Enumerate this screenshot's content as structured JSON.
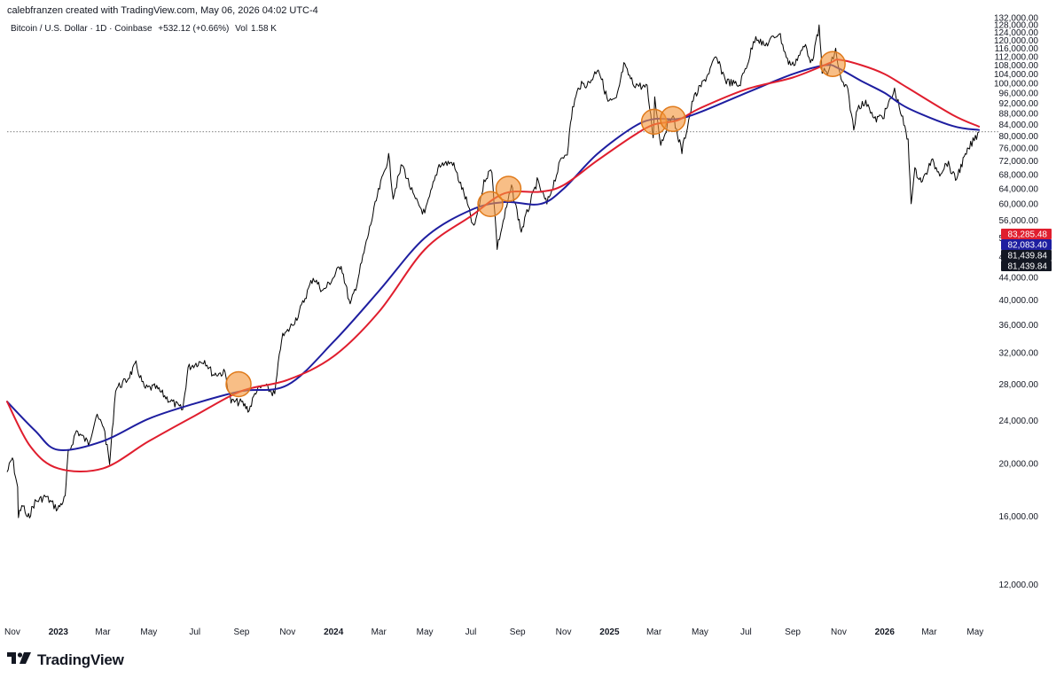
{
  "header": {
    "credit": "calebfranzen created with TradingView.com, May 06, 2026 04:02 UTC-4",
    "symbol": "Bitcoin / U.S. Dollar · 1D · Coinbase",
    "change": "+532.12 (+0.66%)",
    "volume_label": "Vol",
    "volume_value": "1.58 K"
  },
  "brand": {
    "name": "TradingView",
    "logo_icon": "tradingview-logo-icon"
  },
  "chart_data": {
    "type": "line",
    "title": "",
    "xlabel": "",
    "ylabel": "",
    "y_scale": "log",
    "ylim": [
      10500,
      133000
    ],
    "xlim": [
      "2022-10-25",
      "2026-05-20"
    ],
    "grid": false,
    "y_ticks": [
      132000,
      128000,
      124000,
      120000,
      116000,
      112000,
      108000,
      104000,
      100000,
      96000,
      92000,
      88000,
      84000,
      80000,
      76000,
      72000,
      68000,
      64000,
      60000,
      56000,
      52000,
      48000,
      44000,
      40000,
      36000,
      32000,
      28000,
      24000,
      20000,
      16000,
      12000
    ],
    "y_tick_labels": [
      "132,000.00",
      "128,000.00",
      "124,000.00",
      "120,000.00",
      "116,000.00",
      "112,000.00",
      "108,000.00",
      "104,000.00",
      "100,000.00",
      "96,000.00",
      "92,000.00",
      "88,000.00",
      "84,000.00",
      "80,000.00",
      "76,000.00",
      "72,000.00",
      "68,000.00",
      "64,000.00",
      "60,000.00",
      "56,000.00",
      "52,000.00",
      "48,000.00",
      "44,000.00",
      "40,000.00",
      "36,000.00",
      "32,000.00",
      "28,000.00",
      "24,000.00",
      "20,000.00",
      "16,000.00",
      "12,000.00"
    ],
    "x_ticks": [
      {
        "date": "2022-11-01",
        "label": "Nov",
        "bold": false
      },
      {
        "date": "2023-01-01",
        "label": "2023",
        "bold": true
      },
      {
        "date": "2023-03-01",
        "label": "Mar",
        "bold": false
      },
      {
        "date": "2023-05-01",
        "label": "May",
        "bold": false
      },
      {
        "date": "2023-07-01",
        "label": "Jul",
        "bold": false
      },
      {
        "date": "2023-09-01",
        "label": "Sep",
        "bold": false
      },
      {
        "date": "2023-11-01",
        "label": "Nov",
        "bold": false
      },
      {
        "date": "2024-01-01",
        "label": "2024",
        "bold": true
      },
      {
        "date": "2024-03-01",
        "label": "Mar",
        "bold": false
      },
      {
        "date": "2024-05-01",
        "label": "May",
        "bold": false
      },
      {
        "date": "2024-07-01",
        "label": "Jul",
        "bold": false
      },
      {
        "date": "2024-09-01",
        "label": "Sep",
        "bold": false
      },
      {
        "date": "2024-11-01",
        "label": "Nov",
        "bold": false
      },
      {
        "date": "2025-01-01",
        "label": "2025",
        "bold": true
      },
      {
        "date": "2025-03-01",
        "label": "Mar",
        "bold": false
      },
      {
        "date": "2025-05-01",
        "label": "May",
        "bold": false
      },
      {
        "date": "2025-07-01",
        "label": "Jul",
        "bold": false
      },
      {
        "date": "2025-09-01",
        "label": "Sep",
        "bold": false
      },
      {
        "date": "2025-11-01",
        "label": "Nov",
        "bold": false
      },
      {
        "date": "2026-01-01",
        "label": "2026",
        "bold": true
      },
      {
        "date": "2026-03-01",
        "label": "Mar",
        "bold": false
      },
      {
        "date": "2026-05-01",
        "label": "May",
        "bold": false
      }
    ],
    "series": [
      {
        "name": "",
        "color": "#000000",
        "points": [
          [
            "2022-10-25",
            19300
          ],
          [
            "2022-11-01",
            20500
          ],
          [
            "2022-11-08",
            18000
          ],
          [
            "2022-11-09",
            16000
          ],
          [
            "2022-11-15",
            16800
          ],
          [
            "2022-11-21",
            15800
          ],
          [
            "2022-12-01",
            17000
          ],
          [
            "2022-12-15",
            17400
          ],
          [
            "2022-12-31",
            16500
          ],
          [
            "2023-01-10",
            17300
          ],
          [
            "2023-01-14",
            20800
          ],
          [
            "2023-01-25",
            23000
          ],
          [
            "2023-02-10",
            21800
          ],
          [
            "2023-02-20",
            24400
          ],
          [
            "2023-03-02",
            23500
          ],
          [
            "2023-03-10",
            20000
          ],
          [
            "2023-03-18",
            27500
          ],
          [
            "2023-04-01",
            28400
          ],
          [
            "2023-04-14",
            30400
          ],
          [
            "2023-04-25",
            27500
          ],
          [
            "2023-05-10",
            27600
          ],
          [
            "2023-05-25",
            26400
          ],
          [
            "2023-06-15",
            25100
          ],
          [
            "2023-06-22",
            30000
          ],
          [
            "2023-07-01",
            30500
          ],
          [
            "2023-07-14",
            31000
          ],
          [
            "2023-07-25",
            29200
          ],
          [
            "2023-08-10",
            29400
          ],
          [
            "2023-08-18",
            26000
          ],
          [
            "2023-09-01",
            25900
          ],
          [
            "2023-09-11",
            25100
          ],
          [
            "2023-09-20",
            27200
          ],
          [
            "2023-10-01",
            27800
          ],
          [
            "2023-10-15",
            26800
          ],
          [
            "2023-10-24",
            34000
          ],
          [
            "2023-11-01",
            35000
          ],
          [
            "2023-11-15",
            37500
          ],
          [
            "2023-12-05",
            44000
          ],
          [
            "2023-12-18",
            41500
          ],
          [
            "2024-01-01",
            44000
          ],
          [
            "2024-01-11",
            46500
          ],
          [
            "2024-01-23",
            39000
          ],
          [
            "2024-02-01",
            43000
          ],
          [
            "2024-02-15",
            52000
          ],
          [
            "2024-02-28",
            62000
          ],
          [
            "2024-03-14",
            73500
          ],
          [
            "2024-03-20",
            62000
          ],
          [
            "2024-04-01",
            71000
          ],
          [
            "2024-04-17",
            61500
          ],
          [
            "2024-05-01",
            57500
          ],
          [
            "2024-05-20",
            71000
          ],
          [
            "2024-06-07",
            71500
          ],
          [
            "2024-06-25",
            61000
          ],
          [
            "2024-07-05",
            54000
          ],
          [
            "2024-07-20",
            67000
          ],
          [
            "2024-07-29",
            69500
          ],
          [
            "2024-08-05",
            50000
          ],
          [
            "2024-08-24",
            64500
          ],
          [
            "2024-09-06",
            53500
          ],
          [
            "2024-09-27",
            66000
          ],
          [
            "2024-10-10",
            60000
          ],
          [
            "2024-10-29",
            72500
          ],
          [
            "2024-11-06",
            75000
          ],
          [
            "2024-11-13",
            90000
          ],
          [
            "2024-11-22",
            99000
          ],
          [
            "2024-12-05",
            100000
          ],
          [
            "2024-12-17",
            107000
          ],
          [
            "2024-12-30",
            92500
          ],
          [
            "2025-01-10",
            93000
          ],
          [
            "2025-01-20",
            108000
          ],
          [
            "2025-02-01",
            100000
          ],
          [
            "2025-02-20",
            98000
          ],
          [
            "2025-02-28",
            80000
          ],
          [
            "2025-03-02",
            94000
          ],
          [
            "2025-03-10",
            77500
          ],
          [
            "2025-03-25",
            88000
          ],
          [
            "2025-04-07",
            75000
          ],
          [
            "2025-04-22",
            93500
          ],
          [
            "2025-05-10",
            103000
          ],
          [
            "2025-05-22",
            111500
          ],
          [
            "2025-06-05",
            101000
          ],
          [
            "2025-06-22",
            99000
          ],
          [
            "2025-07-03",
            109000
          ],
          [
            "2025-07-14",
            122500
          ],
          [
            "2025-07-25",
            117000
          ],
          [
            "2025-08-14",
            124000
          ],
          [
            "2025-08-25",
            110000
          ],
          [
            "2025-09-01",
            108000
          ],
          [
            "2025-09-18",
            117500
          ],
          [
            "2025-09-26",
            109000
          ],
          [
            "2025-10-06",
            126000
          ],
          [
            "2025-10-10",
            106000
          ],
          [
            "2025-10-17",
            104000
          ],
          [
            "2025-10-28",
            115000
          ],
          [
            "2025-11-04",
            101000
          ],
          [
            "2025-11-13",
            97000
          ],
          [
            "2025-11-21",
            82000
          ],
          [
            "2025-11-26",
            91000
          ],
          [
            "2025-12-10",
            92000
          ],
          [
            "2025-12-18",
            85500
          ],
          [
            "2025-12-31",
            87500
          ],
          [
            "2026-01-14",
            97000
          ],
          [
            "2026-01-22",
            89000
          ],
          [
            "2026-02-01",
            78000
          ],
          [
            "2026-02-05",
            61000
          ],
          [
            "2026-02-10",
            69000
          ],
          [
            "2026-02-20",
            66000
          ],
          [
            "2026-03-04",
            72000
          ],
          [
            "2026-03-15",
            68500
          ],
          [
            "2026-03-25",
            71500
          ],
          [
            "2026-04-05",
            66500
          ],
          [
            "2026-04-15",
            72000
          ],
          [
            "2026-04-25",
            77000
          ],
          [
            "2026-05-06",
            81439.84
          ]
        ]
      },
      {
        "name": "",
        "color": "#1e1ea0",
        "points": [
          [
            "2022-10-25",
            26000
          ],
          [
            "2022-12-01",
            23000
          ],
          [
            "2023-01-01",
            21200
          ],
          [
            "2023-03-01",
            22000
          ],
          [
            "2023-05-01",
            24200
          ],
          [
            "2023-07-01",
            25800
          ],
          [
            "2023-09-01",
            27200
          ],
          [
            "2023-11-01",
            27900
          ],
          [
            "2024-01-01",
            33500
          ],
          [
            "2024-03-01",
            41500
          ],
          [
            "2024-05-01",
            52000
          ],
          [
            "2024-07-01",
            58500
          ],
          [
            "2024-08-15",
            60500
          ],
          [
            "2024-10-01",
            60000
          ],
          [
            "2024-11-01",
            64000
          ],
          [
            "2024-12-15",
            74000
          ],
          [
            "2025-02-01",
            83000
          ],
          [
            "2025-03-01",
            86000
          ],
          [
            "2025-04-01",
            86000
          ],
          [
            "2025-05-01",
            88500
          ],
          [
            "2025-07-01",
            96000
          ],
          [
            "2025-09-01",
            104000
          ],
          [
            "2025-10-15",
            108000
          ],
          [
            "2025-11-01",
            106500
          ],
          [
            "2025-12-01",
            101000
          ],
          [
            "2026-01-01",
            96000
          ],
          [
            "2026-02-01",
            90000
          ],
          [
            "2026-04-01",
            83500
          ],
          [
            "2026-05-06",
            82083.4
          ]
        ]
      },
      {
        "name": "",
        "color": "#e01e2e",
        "points": [
          [
            "2022-10-25",
            26000
          ],
          [
            "2022-11-25",
            21500
          ],
          [
            "2023-01-01",
            19600
          ],
          [
            "2023-03-01",
            19600
          ],
          [
            "2023-05-01",
            22000
          ],
          [
            "2023-07-01",
            24500
          ],
          [
            "2023-09-01",
            27200
          ],
          [
            "2023-11-01",
            28500
          ],
          [
            "2024-01-01",
            31500
          ],
          [
            "2024-03-01",
            38000
          ],
          [
            "2024-05-01",
            49500
          ],
          [
            "2024-07-01",
            57000
          ],
          [
            "2024-08-15",
            62800
          ],
          [
            "2024-10-01",
            63200
          ],
          [
            "2024-11-01",
            65000
          ],
          [
            "2024-12-15",
            72000
          ],
          [
            "2025-02-01",
            80000
          ],
          [
            "2025-03-01",
            84000
          ],
          [
            "2025-04-01",
            85500
          ],
          [
            "2025-05-01",
            90000
          ],
          [
            "2025-07-01",
            97500
          ],
          [
            "2025-09-01",
            102500
          ],
          [
            "2025-10-20",
            109000
          ],
          [
            "2025-11-01",
            110500
          ],
          [
            "2025-12-01",
            108000
          ],
          [
            "2026-01-01",
            104000
          ],
          [
            "2026-02-01",
            98000
          ],
          [
            "2026-04-01",
            87500
          ],
          [
            "2026-05-06",
            83285.48
          ]
        ]
      }
    ],
    "annotations": [
      {
        "type": "circle",
        "date": "2023-08-28",
        "value": 28000
      },
      {
        "type": "circle",
        "date": "2024-07-27",
        "value": 60000
      },
      {
        "type": "circle",
        "date": "2024-08-20",
        "value": 64000
      },
      {
        "type": "circle",
        "date": "2025-03-01",
        "value": 85000
      },
      {
        "type": "circle",
        "date": "2025-03-26",
        "value": 86000
      },
      {
        "type": "circle",
        "date": "2025-10-24",
        "value": 108500
      }
    ],
    "price_line": {
      "value": 81439.84,
      "style": "dotted"
    },
    "last_values": [
      {
        "label": "83,285.48",
        "color": "#e01e2e",
        "value": 83285.48
      },
      {
        "label": "82,083.40",
        "color": "#1e1ea0",
        "value": 82083.4
      },
      {
        "label": "81,439.84",
        "color": "#131722",
        "value": 81439.84
      },
      {
        "label": "81,439.84",
        "color": "#131722",
        "value": 81439.84
      }
    ]
  }
}
